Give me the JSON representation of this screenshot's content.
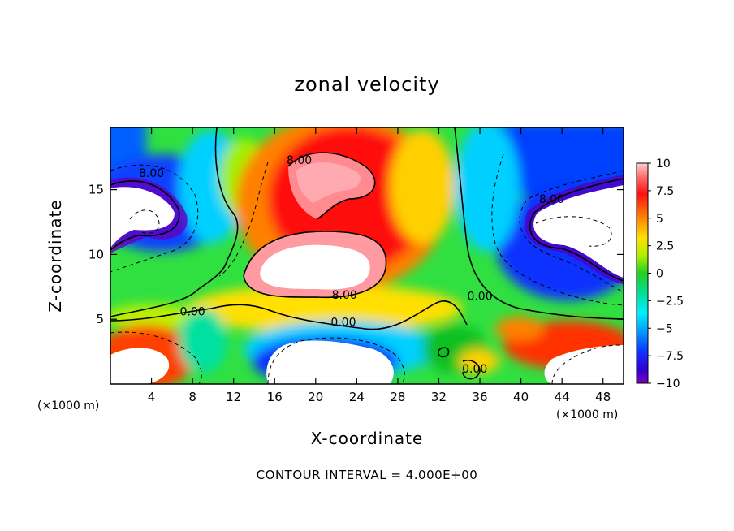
{
  "chart_data": {
    "type": "heatmap",
    "title": "zonal velocity",
    "xlabel": "X-coordinate",
    "ylabel": "Z-coordinate",
    "x_unit": "(×1000 m)",
    "note": "CONTOUR INTERVAL = 4.000E+00",
    "xlim": [
      0,
      50
    ],
    "ylim": [
      0,
      19.8
    ],
    "x_ticks": [
      4,
      8,
      12,
      16,
      20,
      24,
      28,
      32,
      36,
      40,
      44,
      48
    ],
    "y_ticks": [
      5,
      10,
      15
    ],
    "colorbar": {
      "ticks": [
        "10",
        "7.5",
        "5",
        "2.5",
        "0",
        "−2.5",
        "−5",
        "−7.5",
        "−10"
      ],
      "range": [
        -10,
        10
      ]
    },
    "contour_labels": [
      {
        "text": "8.00",
        "x": 18.4,
        "y": 17.3
      },
      {
        "text": "8.00",
        "x": 4.0,
        "y": 16.3
      },
      {
        "text": "8.00",
        "x": 43.0,
        "y": 14.3
      },
      {
        "text": "8.00",
        "x": 22.8,
        "y": 6.9
      },
      {
        "text": "0.00",
        "x": 8.0,
        "y": 5.6
      },
      {
        "text": "0.00",
        "x": 22.7,
        "y": 4.8
      },
      {
        "text": "0.00",
        "x": 36.0,
        "y": 6.8
      },
      {
        "text": "0.00",
        "x": 35.5,
        "y": 1.2
      }
    ],
    "features": [
      {
        "label": "strong positive jet core",
        "value": 10,
        "x": 21,
        "y": 16
      },
      {
        "label": "positive lobe",
        "value": 10,
        "x": 19,
        "y": 9.5
      },
      {
        "label": "negative core upper-left",
        "value": -10,
        "x": 4,
        "y": 13.5
      },
      {
        "label": "negative core upper-right",
        "value": -10,
        "x": 46,
        "y": 12
      },
      {
        "label": "positive bottom-left",
        "value": 8,
        "x": 3,
        "y": 1.5
      },
      {
        "label": "negative bottom-centre",
        "value": -10,
        "x": 21,
        "y": 2.2
      },
      {
        "label": "positive bottom-right",
        "value": 9,
        "x": 46,
        "y": 2
      }
    ]
  }
}
